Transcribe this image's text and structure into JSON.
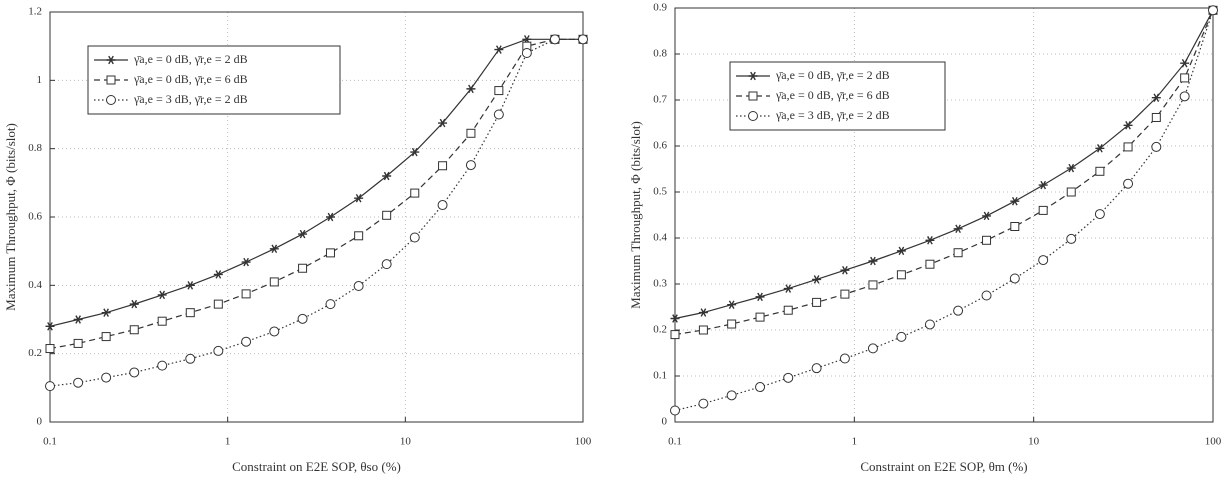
{
  "chart_data": [
    {
      "type": "line",
      "xlabel": "Constraint on E2E SOP,  θso  (%)",
      "ylabel": "Maximum Throughput, Φ (bits/slot)",
      "xscale": "log",
      "xlim": [
        0.1,
        100
      ],
      "xticks": [
        0.1,
        1,
        10,
        100
      ],
      "ylim": [
        0,
        1.2
      ],
      "yticks": [
        0,
        0.2,
        0.4,
        0.6,
        0.8,
        1,
        1.2
      ],
      "grid": true,
      "legend": "upper left",
      "x": [
        0.1,
        0.144,
        0.207,
        0.298,
        0.428,
        0.616,
        0.886,
        1.27,
        1.83,
        2.64,
        3.79,
        5.46,
        7.85,
        11.3,
        16.2,
        23.4,
        33.6,
        48.3,
        69.5,
        100
      ],
      "series": [
        {
          "name": "γ̄a,e = 0 dB, γ̄r,e = 2 dB",
          "color": "#333333",
          "marker": "star",
          "linestyle": "solid",
          "values": [
            0.28,
            0.3,
            0.32,
            0.345,
            0.372,
            0.4,
            0.432,
            0.468,
            0.507,
            0.55,
            0.6,
            0.655,
            0.72,
            0.79,
            0.875,
            0.975,
            1.09,
            1.12,
            1.12,
            1.12
          ]
        },
        {
          "name": "γ̄a,e = 0 dB, γ̄r,e = 6 dB",
          "color": "#333333",
          "marker": "square",
          "linestyle": "dashed",
          "values": [
            0.215,
            0.23,
            0.25,
            0.27,
            0.295,
            0.32,
            0.345,
            0.375,
            0.41,
            0.45,
            0.495,
            0.545,
            0.605,
            0.67,
            0.75,
            0.845,
            0.97,
            1.1,
            1.12,
            1.12
          ]
        },
        {
          "name": "γ̄a,e = 3 dB, γ̄r,e = 2 dB",
          "color": "#333333",
          "marker": "circle",
          "linestyle": "dotted",
          "values": [
            0.105,
            0.115,
            0.13,
            0.145,
            0.165,
            0.185,
            0.208,
            0.235,
            0.265,
            0.302,
            0.345,
            0.398,
            0.462,
            0.54,
            0.635,
            0.752,
            0.9,
            1.08,
            1.12,
            1.12
          ]
        }
      ]
    },
    {
      "type": "line",
      "xlabel": "Constraint on E2E SOP,  θm  (%)",
      "ylabel": "Maximum Throughput,  Φ  (bits/slot)",
      "xscale": "log",
      "xlim": [
        0.1,
        100
      ],
      "xticks": [
        0.1,
        1,
        10,
        100
      ],
      "ylim": [
        0,
        0.9
      ],
      "yticks": [
        0,
        0.1,
        0.2,
        0.3,
        0.4,
        0.5,
        0.6,
        0.7,
        0.8,
        0.9
      ],
      "grid": true,
      "legend": "upper left",
      "x": [
        0.1,
        0.144,
        0.207,
        0.298,
        0.428,
        0.616,
        0.886,
        1.27,
        1.83,
        2.64,
        3.79,
        5.46,
        7.85,
        11.3,
        16.2,
        23.4,
        33.6,
        48.3,
        69.5,
        100
      ],
      "series": [
        {
          "name": "γ̄a,e = 0 dB, γ̄r,e = 2 dB",
          "color": "#333333",
          "marker": "star",
          "linestyle": "solid",
          "values": [
            0.225,
            0.238,
            0.255,
            0.272,
            0.29,
            0.31,
            0.33,
            0.35,
            0.372,
            0.395,
            0.42,
            0.448,
            0.48,
            0.515,
            0.552,
            0.595,
            0.645,
            0.705,
            0.78,
            0.895
          ]
        },
        {
          "name": "γ̄a,e = 0 dB, γ̄r,e = 6 dB",
          "color": "#333333",
          "marker": "square",
          "linestyle": "dashed",
          "values": [
            0.19,
            0.2,
            0.213,
            0.228,
            0.243,
            0.26,
            0.278,
            0.298,
            0.32,
            0.343,
            0.368,
            0.395,
            0.425,
            0.46,
            0.5,
            0.545,
            0.598,
            0.662,
            0.748,
            0.895
          ]
        },
        {
          "name": "γ̄a,e = 3 dB, γ̄r,e = 2 dB",
          "color": "#333333",
          "marker": "circle",
          "linestyle": "dotted",
          "values": [
            0.025,
            0.04,
            0.058,
            0.076,
            0.096,
            0.117,
            0.138,
            0.16,
            0.185,
            0.212,
            0.242,
            0.275,
            0.312,
            0.352,
            0.398,
            0.452,
            0.518,
            0.598,
            0.708,
            0.895
          ]
        }
      ]
    }
  ]
}
